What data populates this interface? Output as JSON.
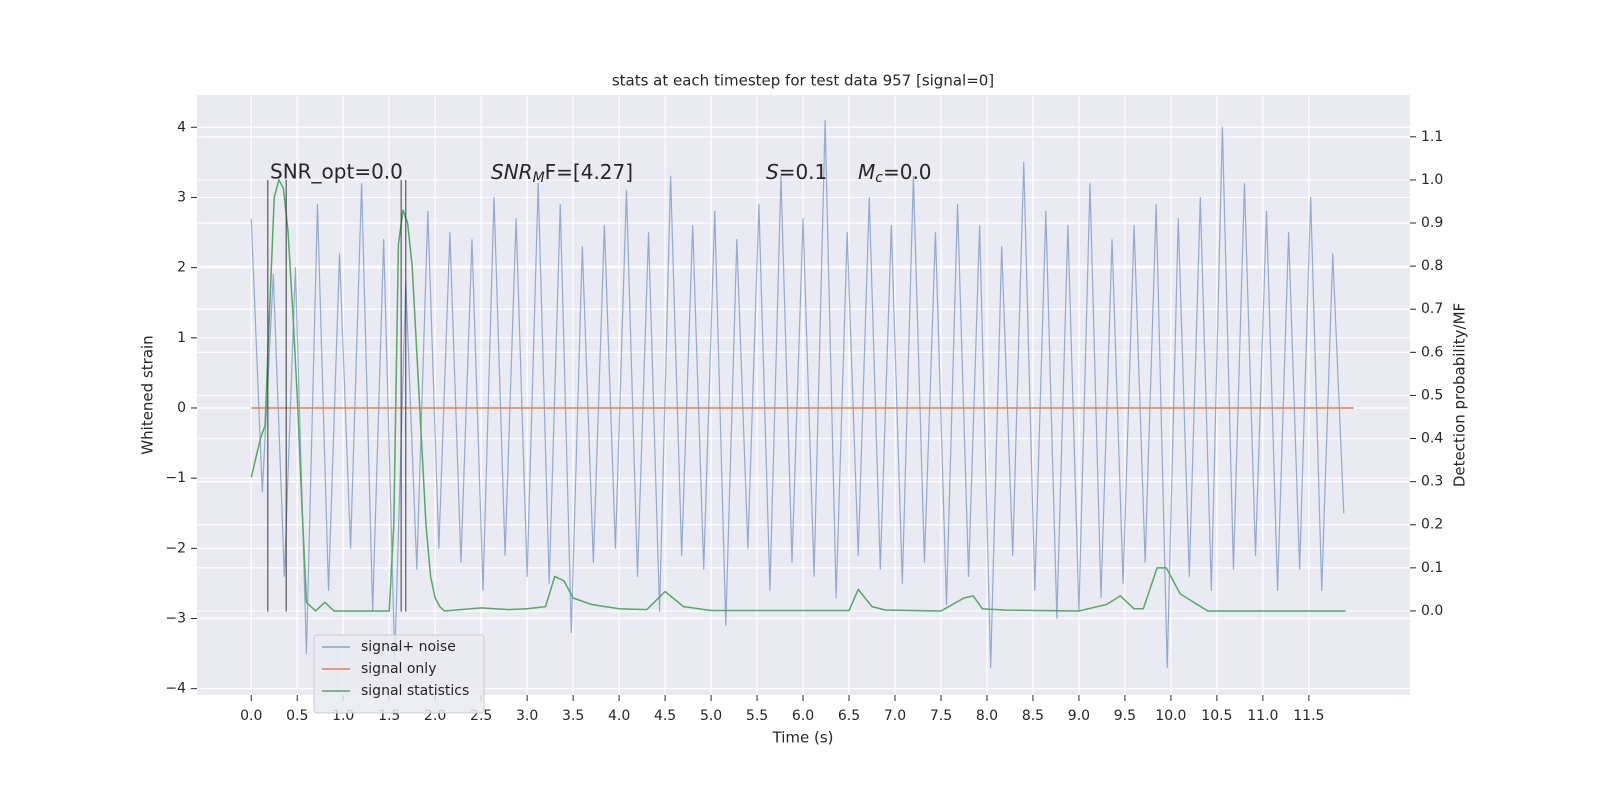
{
  "chart_data": {
    "type": "line",
    "title": "stats at each timestep for test data 957 [signal=0]",
    "xlabel": "Time (s)",
    "ylabel": "Whitened strain",
    "y2label": "Detection probability/MF",
    "xlim": [
      -0.59,
      12.6
    ],
    "ylim": [
      -4.09,
      4.46
    ],
    "y2lim": [
      -0.195,
      1.197
    ],
    "xticks": [
      {
        "value": 0,
        "label": "0.0"
      },
      {
        "value": 0.5,
        "label": "0.5"
      },
      {
        "value": 1,
        "label": "1.0"
      },
      {
        "value": 1.5,
        "label": "1.5"
      },
      {
        "value": 2,
        "label": "2.0"
      },
      {
        "value": 2.5,
        "label": "2.5"
      },
      {
        "value": 3,
        "label": "3.0"
      },
      {
        "value": 3.5,
        "label": "3.5"
      },
      {
        "value": 4,
        "label": "4.0"
      },
      {
        "value": 4.5,
        "label": "4.5"
      },
      {
        "value": 5,
        "label": "5.0"
      },
      {
        "value": 5.5,
        "label": "5.5"
      },
      {
        "value": 6,
        "label": "6.0"
      },
      {
        "value": 6.5,
        "label": "6.5"
      },
      {
        "value": 7,
        "label": "7.0"
      },
      {
        "value": 7.5,
        "label": "7.5"
      },
      {
        "value": 8,
        "label": "8.0"
      },
      {
        "value": 8.5,
        "label": "8.5"
      },
      {
        "value": 9,
        "label": "9.0"
      },
      {
        "value": 9.5,
        "label": "9.5"
      },
      {
        "value": 10,
        "label": "10.0"
      },
      {
        "value": 10.5,
        "label": "10.5"
      },
      {
        "value": 11,
        "label": "11.0"
      },
      {
        "value": 11.5,
        "label": "11.5"
      }
    ],
    "yticks": [
      {
        "value": -4,
        "label": "−4"
      },
      {
        "value": -3,
        "label": "−3"
      },
      {
        "value": -2,
        "label": "−2"
      },
      {
        "value": -1,
        "label": "−1"
      },
      0,
      1,
      2,
      3,
      4
    ],
    "y2ticks": [
      {
        "value": 0,
        "label": "0.0"
      },
      {
        "value": 0.1,
        "label": "0.1"
      },
      {
        "value": 0.2,
        "label": "0.2"
      },
      {
        "value": 0.3,
        "label": "0.3"
      },
      {
        "value": 0.4,
        "label": "0.4"
      },
      {
        "value": 0.5,
        "label": "0.5"
      },
      {
        "value": 0.6,
        "label": "0.6"
      },
      {
        "value": 0.7,
        "label": "0.7"
      },
      {
        "value": 0.8,
        "label": "0.8"
      },
      {
        "value": 0.9,
        "label": "0.9"
      },
      {
        "value": 1,
        "label": "1.0"
      },
      {
        "value": 1.1,
        "label": "1.1"
      }
    ],
    "grid": true,
    "legend": "lower left",
    "series": [
      {
        "name": "signal+ noise",
        "color": "#4c72b0",
        "x": [
          0,
          0.12,
          0.24,
          0.36,
          0.48,
          0.6,
          0.72,
          0.84,
          0.96,
          1.08,
          1.2,
          1.32,
          1.44,
          1.56,
          1.68,
          1.8,
          1.92,
          2.04,
          2.16,
          2.28,
          2.4,
          2.52,
          2.64,
          2.76,
          2.88,
          3,
          3.12,
          3.24,
          3.36,
          3.48,
          3.6,
          3.72,
          3.84,
          3.96,
          4.08,
          4.2,
          4.32,
          4.44,
          4.56,
          4.68,
          4.8,
          4.92,
          5.04,
          5.16,
          5.28,
          5.4,
          5.52,
          5.64,
          5.76,
          5.88,
          6,
          6.12,
          6.24,
          6.36,
          6.48,
          6.6,
          6.72,
          6.84,
          6.96,
          7.08,
          7.2,
          7.32,
          7.44,
          7.56,
          7.68,
          7.8,
          7.92,
          8.04,
          8.16,
          8.28,
          8.4,
          8.52,
          8.64,
          8.76,
          8.88,
          9,
          9.12,
          9.24,
          9.36,
          9.48,
          9.6,
          9.72,
          9.84,
          9.96,
          10.08,
          10.2,
          10.32,
          10.44,
          10.56,
          10.68,
          10.8,
          10.92,
          11.04,
          11.16,
          11.28,
          11.4,
          11.52,
          11.64,
          11.76,
          11.88
        ],
        "values": [
          2.7,
          -1.2,
          1.9,
          -2.4,
          2.0,
          -3.5,
          2.9,
          -2.6,
          2.2,
          -2.0,
          3.2,
          -2.9,
          2.4,
          -3.6,
          1.8,
          -2.3,
          2.8,
          -2.0,
          2.5,
          -2.2,
          2.4,
          -2.6,
          3.0,
          -2.1,
          2.7,
          -2.4,
          3.2,
          -2.5,
          2.9,
          -3.2,
          2.3,
          -2.2,
          2.6,
          -2.0,
          3.1,
          -2.4,
          2.5,
          -2.9,
          3.3,
          -2.1,
          2.6,
          -2.3,
          2.8,
          -3.1,
          2.4,
          -2.0,
          2.9,
          -2.6,
          3.3,
          -2.2,
          2.7,
          -2.4,
          4.1,
          -2.7,
          2.5,
          -2.1,
          3.0,
          -2.3,
          2.6,
          -2.5,
          3.3,
          -2.2,
          2.5,
          -2.8,
          2.9,
          -2.4,
          2.6,
          -3.7,
          2.3,
          -2.1,
          3.5,
          -2.6,
          2.8,
          -3.0,
          2.6,
          -2.9,
          3.2,
          -2.7,
          2.4,
          -2.5,
          2.6,
          -2.2,
          2.9,
          -3.7,
          2.7,
          -2.4,
          3.0,
          -2.6,
          4.0,
          -2.3,
          3.2,
          -2.1,
          2.8,
          -2.6,
          2.5,
          -2.3,
          3.0,
          -2.6,
          2.2,
          -1.5
        ]
      },
      {
        "name": "signal only",
        "color": "#dd8452",
        "x": [
          0,
          11.99
        ],
        "values": [
          0,
          0
        ]
      },
      {
        "name": "signal statistics",
        "color": "#55a868",
        "axis": "y2",
        "x": [
          0,
          0.1,
          0.15,
          0.2,
          0.25,
          0.3,
          0.35,
          0.4,
          0.45,
          0.5,
          0.55,
          0.6,
          0.65,
          0.7,
          0.8,
          0.9,
          1.0,
          1.1,
          1.3,
          1.5,
          1.55,
          1.6,
          1.65,
          1.7,
          1.75,
          1.8,
          1.85,
          1.9,
          1.95,
          2.0,
          2.05,
          2.1,
          2.5,
          2.8,
          3.0,
          3.2,
          3.3,
          3.4,
          3.5,
          3.7,
          4.0,
          4.3,
          4.5,
          4.7,
          5.0,
          6.0,
          6.5,
          6.6,
          6.75,
          6.9,
          7.5,
          7.75,
          7.85,
          7.95,
          8.2,
          9.0,
          9.3,
          9.45,
          9.6,
          9.7,
          9.85,
          9.95,
          10.1,
          10.4,
          11.9
        ],
        "values": [
          0.31,
          0.4,
          0.43,
          0.7,
          0.96,
          1.0,
          0.98,
          0.88,
          0.7,
          0.5,
          0.25,
          0.02,
          0.01,
          0,
          0.02,
          0,
          0,
          0,
          0,
          0,
          0.2,
          0.85,
          0.93,
          0.9,
          0.8,
          0.6,
          0.4,
          0.2,
          0.08,
          0.03,
          0.01,
          0,
          0.007,
          0.003,
          0.005,
          0.01,
          0.08,
          0.07,
          0.03,
          0.015,
          0.005,
          0.003,
          0.045,
          0.01,
          0.001,
          0.001,
          0.001,
          0.05,
          0.01,
          0.002,
          0,
          0.03,
          0.035,
          0.005,
          0.002,
          0,
          0.015,
          0.035,
          0.005,
          0.005,
          0.1,
          0.1,
          0.04,
          0,
          0
        ]
      }
    ],
    "vlines": [
      0.18,
      0.38,
      1.63,
      1.68
    ],
    "vlines_span": [
      -2.9,
      3.25
    ],
    "annotations": [
      {
        "text": "SNR_opt=0.0"
      },
      {
        "main": "SNR",
        "sub": "M",
        "rest": "F=[4.27]"
      },
      {
        "main": "S",
        "rest": "=0.1"
      },
      {
        "main": "M",
        "sub": "c",
        "rest": "=0.0"
      }
    ]
  }
}
